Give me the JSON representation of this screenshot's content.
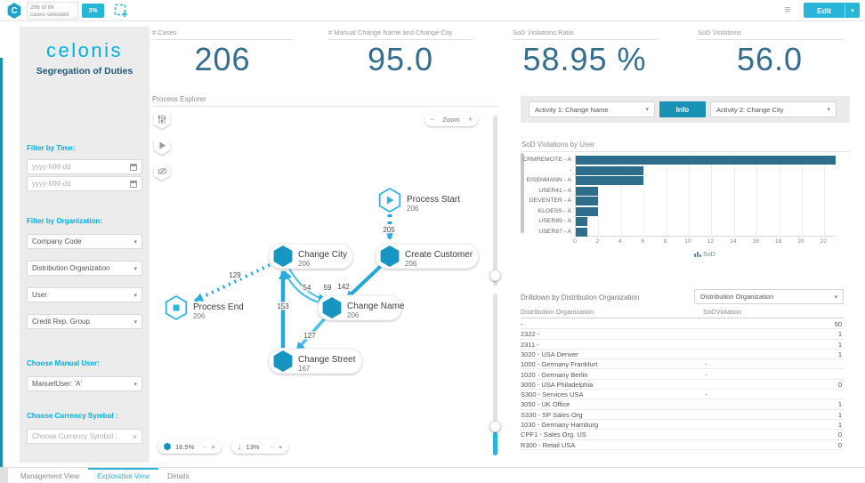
{
  "topbar": {
    "logo_letter": "C",
    "selection_line1": "206 of 8k",
    "selection_line2": "cases selected",
    "selection_badge": "3%",
    "edit_label": "Edit"
  },
  "icons": {
    "minus": "−",
    "plus": "+",
    "caret_down": "▾",
    "menu": "≡",
    "close": "×",
    "arrow_down": "↓"
  },
  "sidebar": {
    "brand": "celonis",
    "subtitle": "Segregation of Duties",
    "filter_time_label": "Filter by Time:",
    "date_placeholder_1": "yyyy-MM-dd",
    "date_placeholder_2": "yyyy-MM-dd",
    "filter_org_label": "Filter by Organization:",
    "dropdowns": [
      "Company Code",
      "Distribution Organization",
      "User",
      "Credit Rep. Group"
    ],
    "manual_user_label": "Choose Manual User:",
    "manual_user_value": "ManuelUser: 'A'",
    "currency_label": "Choose Currency Symbol :",
    "currency_placeholder": "Choose Currency Symbol :"
  },
  "kpis": [
    {
      "label": "# Cases",
      "value": "206"
    },
    {
      "label": "# Manual Change Name and Change City",
      "value": "95.0"
    },
    {
      "label": "SoD Violations Ratio",
      "value": "58.95 %"
    },
    {
      "label": "SoD Violations",
      "value": "56.0"
    }
  ],
  "process_explorer": {
    "title": "Process Explorer",
    "zoom_label": "Zoom",
    "activity_scale": "16.5%",
    "connection_scale": "13%",
    "nodes": [
      {
        "id": "start",
        "label": "Process Start",
        "count": "206",
        "kind": "start"
      },
      {
        "id": "create_customer",
        "label": "Create Customer",
        "count": "206",
        "kind": "activity"
      },
      {
        "id": "change_city",
        "label": "Change City",
        "count": "206",
        "kind": "activity"
      },
      {
        "id": "change_name",
        "label": "Change Name",
        "count": "206",
        "kind": "activity"
      },
      {
        "id": "change_street",
        "label": "Change Street",
        "count": "167",
        "kind": "activity"
      },
      {
        "id": "end",
        "label": "Process End",
        "count": "206",
        "kind": "end"
      }
    ],
    "edges": [
      {
        "from": "start",
        "to": "create_customer",
        "value": "205",
        "style": "dashed"
      },
      {
        "from": "create_customer",
        "to": "change_name",
        "value": "142",
        "style": "solid"
      },
      {
        "from": "change_city",
        "to": "change_name",
        "value": "59",
        "style": "solid"
      },
      {
        "from": "change_name",
        "to": "change_city",
        "value": "54",
        "style": "solid"
      },
      {
        "from": "change_street",
        "to": "change_city",
        "value": "153",
        "style": "solid"
      },
      {
        "from": "change_name",
        "to": "change_street",
        "value": "127",
        "style": "solid"
      },
      {
        "from": "change_city",
        "to": "end",
        "value": "129",
        "style": "dashed"
      }
    ]
  },
  "activity_bar": {
    "activity1": "Activity 1: Change Name",
    "info_label": "Info",
    "activity2": "Activity 2: Change City"
  },
  "chart_data": {
    "type": "bar",
    "orientation": "horizontal",
    "title": "SoD Violations by User",
    "categories": [
      "CRMREMOTE - A",
      "-",
      "EISENMANN - A",
      "USER41 - A",
      "DEVENTER - A",
      "KLOESS - A",
      "USER89 - A",
      "USER87 - A"
    ],
    "values": [
      23,
      6,
      6,
      2,
      2,
      2,
      1,
      1
    ],
    "xlabel": "SoD",
    "xlim": [
      0,
      23
    ],
    "xticks": [
      0,
      2,
      4,
      6,
      8,
      10,
      12,
      14,
      16,
      18,
      20,
      22
    ],
    "legend": [
      "SoD"
    ],
    "bar_color": "#2e6e8c",
    "grid": true,
    "legend_position": "bottom"
  },
  "drilldown": {
    "title": "Drilldown by Distribution Organization",
    "dropdown_value": "Distribution Organization",
    "columns": [
      "Distribution Organization",
      "SoDViolation"
    ],
    "rows": [
      [
        "-",
        "50"
      ],
      [
        "2322 -",
        "1"
      ],
      [
        "2311 -",
        "1"
      ],
      [
        "3020 - USA Denver",
        "1"
      ],
      [
        "1000 - Germany Frankfurt",
        "-"
      ],
      [
        "1020 - Germany Berlin",
        "-"
      ],
      [
        "3000 - USA Philadelphia",
        "0"
      ],
      [
        "S300 - Services USA",
        "-"
      ],
      [
        "3050 - UK Office",
        "1"
      ],
      [
        "S330 - SP Sales Org",
        "1"
      ],
      [
        "1030 - Germany Hamburg",
        "1"
      ],
      [
        "CPF1 - Sales Org. US",
        "0"
      ],
      [
        "R300 - Retail USA",
        "0"
      ]
    ]
  },
  "footer_tabs": [
    {
      "label": "Management View",
      "active": false
    },
    {
      "label": "Explorative View",
      "active": true
    },
    {
      "label": "Details",
      "active": false
    }
  ],
  "colors": {
    "accent": "#29b5d8",
    "kpi_number": "#336e8e",
    "bar": "#2e6e8c",
    "node_fill": "#1795c2",
    "edge": "#2cacdf",
    "sidebar_label": "#00aee0",
    "dark_title": "#1f5876"
  }
}
